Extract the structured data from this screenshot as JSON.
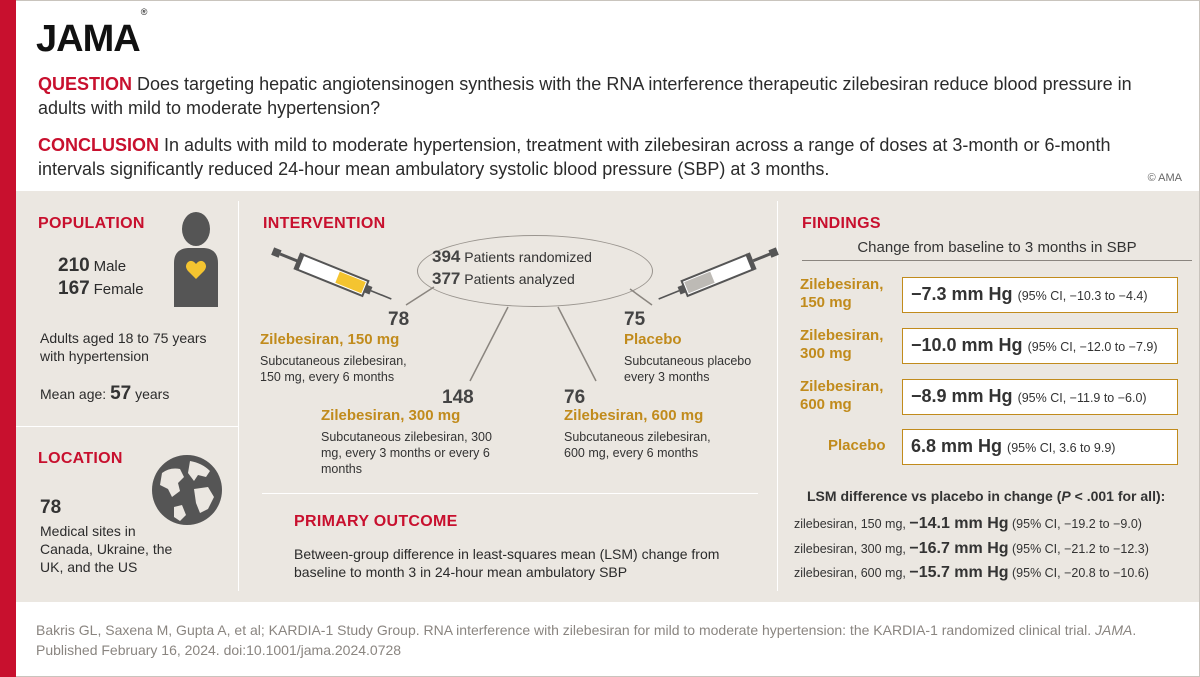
{
  "header": {
    "logo": "JAMA",
    "logo_mark": "®",
    "question_label": "QUESTION",
    "question_text": " Does targeting hepatic angiotensinogen synthesis with the RNA interference therapeutic zilebesiran reduce blood pressure in adults with mild to moderate hypertension?",
    "conclusion_label": "CONCLUSION",
    "conclusion_text": " In adults with mild to moderate hypertension, treatment with zilebesiran across a range of doses at 3-month or 6-month intervals significantly reduced 24-hour mean ambulatory systolic blood pressure (SBP) at 3 months.",
    "copyright": "© AMA"
  },
  "population": {
    "heading": "POPULATION",
    "male_count": "210",
    "male_label": "Male",
    "female_count": "167",
    "female_label": "Female",
    "description": "Adults aged 18 to 75 years with hypertension",
    "mean_age_label": "Mean age:",
    "mean_age_value": "57",
    "mean_age_unit": "years"
  },
  "location": {
    "heading": "LOCATION",
    "sites_count": "78",
    "sites_text": "Medical sites in Canada, Ukraine, the UK, and the US"
  },
  "intervention": {
    "heading": "INTERVENTION",
    "randomized_count": "394",
    "randomized_label": "Patients randomized",
    "analyzed_count": "377",
    "analyzed_label": "Patients analyzed",
    "arms": [
      {
        "n": "78",
        "name": "Zilebesiran, 150 mg",
        "desc": "Subcutaneous zilebesiran, 150 mg, every 6 months"
      },
      {
        "n": "148",
        "name": "Zilebesiran, 300 mg",
        "desc": "Subcutaneous zilebesiran, 300 mg, every 3 months or every 6 months"
      },
      {
        "n": "76",
        "name": "Zilebesiran, 600 mg",
        "desc": "Subcutaneous zilebesiran, 600 mg, every 6 months"
      },
      {
        "n": "75",
        "name": "Placebo",
        "desc": "Subcutaneous placebo every 3 months"
      }
    ]
  },
  "primary_outcome": {
    "heading": "PRIMARY OUTCOME",
    "text": "Between-group difference in least-squares mean (LSM) change from baseline to month 3 in 24-hour mean ambulatory SBP"
  },
  "findings": {
    "heading": "FINDINGS",
    "subheading": "Change from baseline to 3 months in SBP",
    "rows": [
      {
        "label": "Zilebesiran, 150 mg",
        "value": "−7.3 mm Hg",
        "ci": "(95% CI, −10.3 to −4.4)"
      },
      {
        "label": "Zilebesiran, 300 mg",
        "value": "−10.0 mm Hg",
        "ci": "(95% CI, −12.0 to −7.9)"
      },
      {
        "label": "Zilebesiran, 600 mg",
        "value": "−8.9 mm Hg",
        "ci": "(95% CI, −11.9 to −6.0)"
      },
      {
        "label": "Placebo",
        "value": "6.8 mm Hg",
        "ci": "(95% CI, 3.6 to 9.9)"
      }
    ],
    "lsm_heading_pre": "LSM difference vs placebo in change (",
    "lsm_heading_p": "P",
    "lsm_heading_post": " < .001 for all):",
    "lsm_rows": [
      {
        "label": "zilebesiran, 150 mg,",
        "value": "−14.1 mm Hg",
        "ci": "(95% CI, −19.2 to −9.0)"
      },
      {
        "label": "zilebesiran, 300 mg,",
        "value": "−16.7 mm Hg",
        "ci": "(95% CI, −21.2 to −12.3)"
      },
      {
        "label": "zilebesiran, 600 mg,",
        "value": "−15.7 mm Hg",
        "ci": "(95% CI, −20.8 to −10.6)"
      }
    ]
  },
  "citation": {
    "text_pre": "Bakris GL, Saxena M, Gupta A, et al; KARDIA-1 Study Group. RNA interference with zilebesiran for mild to moderate hypertension: the KARDIA-1 randomized clinical trial. ",
    "journal": "JAMA",
    "text_post": ". Published February 16, 2024. doi:10.1001/jama.2024.0728"
  },
  "colors": {
    "brand_red": "#c8102e",
    "accent_gold": "#c18b1c",
    "panel_bg": "#ebe7e1"
  },
  "icons": [
    "person-heart-icon",
    "globe-icon",
    "syringe-icon"
  ]
}
